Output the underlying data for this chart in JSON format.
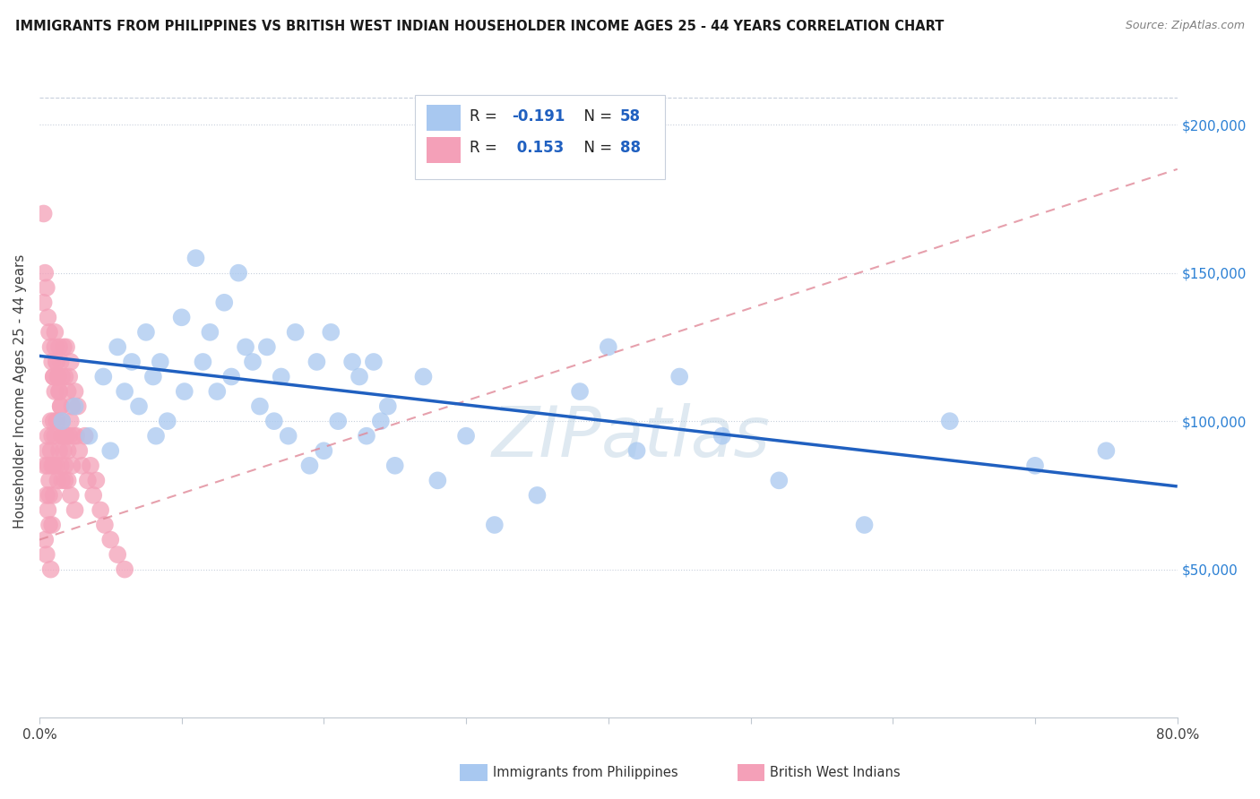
{
  "title": "IMMIGRANTS FROM PHILIPPINES VS BRITISH WEST INDIAN HOUSEHOLDER INCOME AGES 25 - 44 YEARS CORRELATION CHART",
  "source": "Source: ZipAtlas.com",
  "ylabel": "Householder Income Ages 25 - 44 years",
  "ytick_values": [
    50000,
    100000,
    150000,
    200000
  ],
  "ylim": [
    0,
    220000
  ],
  "xlim": [
    0.0,
    0.8
  ],
  "color_philippines": "#a8c8f0",
  "color_bwi": "#f4a0b8",
  "trendline_philippines_color": "#2060c0",
  "trendline_bwi_color": "#e08898",
  "watermark": "ZIPatlas",
  "philippines_x": [
    0.016,
    0.025,
    0.035,
    0.045,
    0.05,
    0.055,
    0.06,
    0.065,
    0.07,
    0.075,
    0.08,
    0.082,
    0.085,
    0.09,
    0.1,
    0.102,
    0.11,
    0.115,
    0.12,
    0.125,
    0.13,
    0.135,
    0.14,
    0.145,
    0.15,
    0.155,
    0.16,
    0.165,
    0.17,
    0.175,
    0.18,
    0.19,
    0.195,
    0.2,
    0.205,
    0.21,
    0.22,
    0.225,
    0.23,
    0.235,
    0.24,
    0.245,
    0.25,
    0.27,
    0.28,
    0.3,
    0.32,
    0.35,
    0.38,
    0.4,
    0.42,
    0.45,
    0.48,
    0.52,
    0.58,
    0.64,
    0.7,
    0.75
  ],
  "philippines_y": [
    100000,
    105000,
    95000,
    115000,
    90000,
    125000,
    110000,
    120000,
    105000,
    130000,
    115000,
    95000,
    120000,
    100000,
    135000,
    110000,
    155000,
    120000,
    130000,
    110000,
    140000,
    115000,
    150000,
    125000,
    120000,
    105000,
    125000,
    100000,
    115000,
    95000,
    130000,
    85000,
    120000,
    90000,
    130000,
    100000,
    120000,
    115000,
    95000,
    120000,
    100000,
    105000,
    85000,
    115000,
    80000,
    95000,
    65000,
    75000,
    110000,
    125000,
    90000,
    115000,
    95000,
    80000,
    65000,
    100000,
    85000,
    90000
  ],
  "bwi_x": [
    0.003,
    0.004,
    0.004,
    0.005,
    0.005,
    0.005,
    0.006,
    0.006,
    0.006,
    0.007,
    0.007,
    0.007,
    0.008,
    0.008,
    0.008,
    0.009,
    0.009,
    0.009,
    0.01,
    0.01,
    0.01,
    0.01,
    0.011,
    0.011,
    0.011,
    0.012,
    0.012,
    0.012,
    0.013,
    0.013,
    0.013,
    0.014,
    0.014,
    0.014,
    0.015,
    0.015,
    0.015,
    0.016,
    0.016,
    0.016,
    0.017,
    0.017,
    0.018,
    0.018,
    0.019,
    0.019,
    0.02,
    0.02,
    0.021,
    0.021,
    0.022,
    0.022,
    0.023,
    0.023,
    0.024,
    0.025,
    0.026,
    0.027,
    0.028,
    0.03,
    0.032,
    0.034,
    0.036,
    0.038,
    0.04,
    0.043,
    0.046,
    0.05,
    0.055,
    0.06,
    0.003,
    0.004,
    0.005,
    0.006,
    0.007,
    0.008,
    0.009,
    0.01,
    0.011,
    0.012,
    0.013,
    0.014,
    0.015,
    0.016,
    0.017,
    0.018,
    0.02,
    0.022,
    0.025
  ],
  "bwi_y": [
    170000,
    85000,
    60000,
    75000,
    90000,
    55000,
    70000,
    85000,
    95000,
    75000,
    65000,
    80000,
    90000,
    100000,
    50000,
    85000,
    65000,
    95000,
    100000,
    85000,
    75000,
    115000,
    110000,
    95000,
    130000,
    100000,
    85000,
    120000,
    115000,
    100000,
    80000,
    125000,
    110000,
    90000,
    120000,
    105000,
    85000,
    115000,
    100000,
    80000,
    125000,
    95000,
    115000,
    80000,
    125000,
    95000,
    110000,
    90000,
    115000,
    95000,
    120000,
    100000,
    105000,
    85000,
    95000,
    110000,
    95000,
    105000,
    90000,
    85000,
    95000,
    80000,
    85000,
    75000,
    80000,
    70000,
    65000,
    60000,
    55000,
    50000,
    140000,
    150000,
    145000,
    135000,
    130000,
    125000,
    120000,
    115000,
    125000,
    120000,
    115000,
    110000,
    105000,
    95000,
    90000,
    85000,
    80000,
    75000,
    70000
  ],
  "phil_trend_x": [
    0.0,
    0.8
  ],
  "phil_trend_y": [
    122000,
    78000
  ],
  "bwi_trend_x": [
    0.0,
    0.8
  ],
  "bwi_trend_y": [
    60000,
    185000
  ]
}
